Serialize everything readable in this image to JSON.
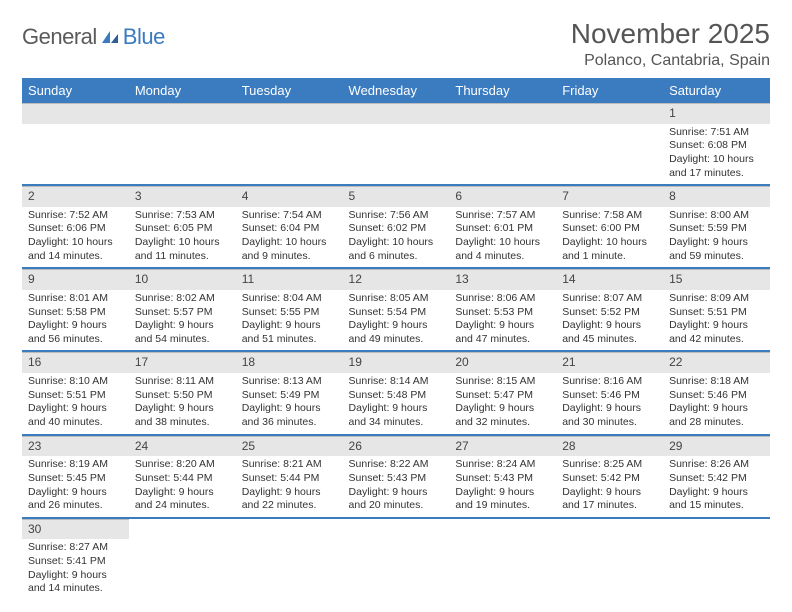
{
  "logo": {
    "part1": "General",
    "part2": "Blue"
  },
  "title": "November 2025",
  "location": "Polanco, Cantabria, Spain",
  "colors": {
    "header_bg": "#3b7bbf",
    "header_text": "#ffffff",
    "daynum_bg": "#e6e6e6",
    "row_border": "#3b7bbf",
    "text": "#333333",
    "logo_gray": "#5a5a5a",
    "logo_blue": "#3b7bbf"
  },
  "weekdays": [
    "Sunday",
    "Monday",
    "Tuesday",
    "Wednesday",
    "Thursday",
    "Friday",
    "Saturday"
  ],
  "weeks": [
    [
      null,
      null,
      null,
      null,
      null,
      null,
      {
        "n": "1",
        "sr": "Sunrise: 7:51 AM",
        "ss": "Sunset: 6:08 PM",
        "dl": "Daylight: 10 hours and 17 minutes."
      }
    ],
    [
      {
        "n": "2",
        "sr": "Sunrise: 7:52 AM",
        "ss": "Sunset: 6:06 PM",
        "dl": "Daylight: 10 hours and 14 minutes."
      },
      {
        "n": "3",
        "sr": "Sunrise: 7:53 AM",
        "ss": "Sunset: 6:05 PM",
        "dl": "Daylight: 10 hours and 11 minutes."
      },
      {
        "n": "4",
        "sr": "Sunrise: 7:54 AM",
        "ss": "Sunset: 6:04 PM",
        "dl": "Daylight: 10 hours and 9 minutes."
      },
      {
        "n": "5",
        "sr": "Sunrise: 7:56 AM",
        "ss": "Sunset: 6:02 PM",
        "dl": "Daylight: 10 hours and 6 minutes."
      },
      {
        "n": "6",
        "sr": "Sunrise: 7:57 AM",
        "ss": "Sunset: 6:01 PM",
        "dl": "Daylight: 10 hours and 4 minutes."
      },
      {
        "n": "7",
        "sr": "Sunrise: 7:58 AM",
        "ss": "Sunset: 6:00 PM",
        "dl": "Daylight: 10 hours and 1 minute."
      },
      {
        "n": "8",
        "sr": "Sunrise: 8:00 AM",
        "ss": "Sunset: 5:59 PM",
        "dl": "Daylight: 9 hours and 59 minutes."
      }
    ],
    [
      {
        "n": "9",
        "sr": "Sunrise: 8:01 AM",
        "ss": "Sunset: 5:58 PM",
        "dl": "Daylight: 9 hours and 56 minutes."
      },
      {
        "n": "10",
        "sr": "Sunrise: 8:02 AM",
        "ss": "Sunset: 5:57 PM",
        "dl": "Daylight: 9 hours and 54 minutes."
      },
      {
        "n": "11",
        "sr": "Sunrise: 8:04 AM",
        "ss": "Sunset: 5:55 PM",
        "dl": "Daylight: 9 hours and 51 minutes."
      },
      {
        "n": "12",
        "sr": "Sunrise: 8:05 AM",
        "ss": "Sunset: 5:54 PM",
        "dl": "Daylight: 9 hours and 49 minutes."
      },
      {
        "n": "13",
        "sr": "Sunrise: 8:06 AM",
        "ss": "Sunset: 5:53 PM",
        "dl": "Daylight: 9 hours and 47 minutes."
      },
      {
        "n": "14",
        "sr": "Sunrise: 8:07 AM",
        "ss": "Sunset: 5:52 PM",
        "dl": "Daylight: 9 hours and 45 minutes."
      },
      {
        "n": "15",
        "sr": "Sunrise: 8:09 AM",
        "ss": "Sunset: 5:51 PM",
        "dl": "Daylight: 9 hours and 42 minutes."
      }
    ],
    [
      {
        "n": "16",
        "sr": "Sunrise: 8:10 AM",
        "ss": "Sunset: 5:51 PM",
        "dl": "Daylight: 9 hours and 40 minutes."
      },
      {
        "n": "17",
        "sr": "Sunrise: 8:11 AM",
        "ss": "Sunset: 5:50 PM",
        "dl": "Daylight: 9 hours and 38 minutes."
      },
      {
        "n": "18",
        "sr": "Sunrise: 8:13 AM",
        "ss": "Sunset: 5:49 PM",
        "dl": "Daylight: 9 hours and 36 minutes."
      },
      {
        "n": "19",
        "sr": "Sunrise: 8:14 AM",
        "ss": "Sunset: 5:48 PM",
        "dl": "Daylight: 9 hours and 34 minutes."
      },
      {
        "n": "20",
        "sr": "Sunrise: 8:15 AM",
        "ss": "Sunset: 5:47 PM",
        "dl": "Daylight: 9 hours and 32 minutes."
      },
      {
        "n": "21",
        "sr": "Sunrise: 8:16 AM",
        "ss": "Sunset: 5:46 PM",
        "dl": "Daylight: 9 hours and 30 minutes."
      },
      {
        "n": "22",
        "sr": "Sunrise: 8:18 AM",
        "ss": "Sunset: 5:46 PM",
        "dl": "Daylight: 9 hours and 28 minutes."
      }
    ],
    [
      {
        "n": "23",
        "sr": "Sunrise: 8:19 AM",
        "ss": "Sunset: 5:45 PM",
        "dl": "Daylight: 9 hours and 26 minutes."
      },
      {
        "n": "24",
        "sr": "Sunrise: 8:20 AM",
        "ss": "Sunset: 5:44 PM",
        "dl": "Daylight: 9 hours and 24 minutes."
      },
      {
        "n": "25",
        "sr": "Sunrise: 8:21 AM",
        "ss": "Sunset: 5:44 PM",
        "dl": "Daylight: 9 hours and 22 minutes."
      },
      {
        "n": "26",
        "sr": "Sunrise: 8:22 AM",
        "ss": "Sunset: 5:43 PM",
        "dl": "Daylight: 9 hours and 20 minutes."
      },
      {
        "n": "27",
        "sr": "Sunrise: 8:24 AM",
        "ss": "Sunset: 5:43 PM",
        "dl": "Daylight: 9 hours and 19 minutes."
      },
      {
        "n": "28",
        "sr": "Sunrise: 8:25 AM",
        "ss": "Sunset: 5:42 PM",
        "dl": "Daylight: 9 hours and 17 minutes."
      },
      {
        "n": "29",
        "sr": "Sunrise: 8:26 AM",
        "ss": "Sunset: 5:42 PM",
        "dl": "Daylight: 9 hours and 15 minutes."
      }
    ],
    [
      {
        "n": "30",
        "sr": "Sunrise: 8:27 AM",
        "ss": "Sunset: 5:41 PM",
        "dl": "Daylight: 9 hours and 14 minutes."
      },
      null,
      null,
      null,
      null,
      null,
      null
    ]
  ]
}
